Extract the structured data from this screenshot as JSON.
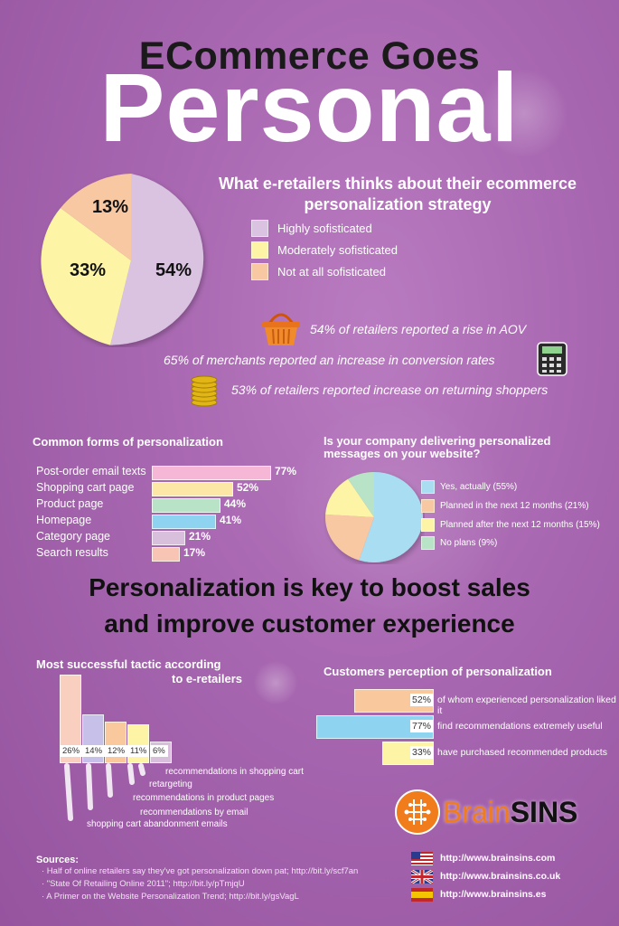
{
  "title": {
    "line1": "ECommerce Goes",
    "line2": "Personal"
  },
  "strategy": {
    "question": "What e-retailers thinks about their ecommerce personalization strategy",
    "legend": [
      {
        "label": "Highly sofisticated",
        "color": "#d9c3e0"
      },
      {
        "label": "Moderately sofisticated",
        "color": "#fdf5a5"
      },
      {
        "label": "Not at all sofisticated",
        "color": "#f8c8a3"
      }
    ],
    "slice_labels": [
      "54%",
      "33%",
      "13%"
    ]
  },
  "stats": [
    {
      "text": "54% of retailers reported a rise in AOV",
      "icon": "shopping-basket-icon"
    },
    {
      "text": "65% of merchants reported an increase in conversion rates",
      "icon": "calculator-icon"
    },
    {
      "text": "53% of retailers reported increase on returning shoppers",
      "icon": "coins-icon"
    }
  ],
  "common_forms": {
    "title": "Common forms of personalization",
    "items": [
      {
        "label": "Post-order email texts",
        "value": 77,
        "display": "77%",
        "color": "#f6b6d6"
      },
      {
        "label": "Shopping cart page",
        "value": 52,
        "display": "52%",
        "color": "#fde7a6"
      },
      {
        "label": "Product page",
        "value": 44,
        "display": "44%",
        "color": "#b9e3c7"
      },
      {
        "label": "Homepage",
        "value": 41,
        "display": "41%",
        "color": "#8ed3ef"
      },
      {
        "label": "Category page",
        "value": 21,
        "display": "21%",
        "color": "#d8c0dd"
      },
      {
        "label": "Search results",
        "value": 17,
        "display": "17%",
        "color": "#f8c5b4"
      }
    ]
  },
  "delivering": {
    "title": "Is your company delivering personalized messages on your website?",
    "legend": [
      {
        "label": "Yes, actually (55%)",
        "color": "#a9ddf2"
      },
      {
        "label": "Planned in the next 12 months (21%)",
        "color": "#f8c8a3"
      },
      {
        "label": "Planned after the next 12 months (15%)",
        "color": "#fdf5a5"
      },
      {
        "label": "No plans (9%)",
        "color": "#b9e3c7"
      }
    ]
  },
  "headline": {
    "line1": "Personalization is key to boost sales",
    "line2": "and improve customer experience"
  },
  "tactics": {
    "title_line1": "Most successful tactic according",
    "title_line2": "to e-retailers",
    "items": [
      {
        "display": "26%",
        "value": 26,
        "label": "shopping cart abandonment emails",
        "color": "#f9cfc0"
      },
      {
        "display": "14%",
        "value": 14,
        "label": "recommendations by email",
        "color": "#c7c0e8"
      },
      {
        "display": "12%",
        "value": 12,
        "label": "recommendations in product pages",
        "color": "#f9c89d"
      },
      {
        "display": "11%",
        "value": 11,
        "label": "retargeting",
        "color": "#fdf5a5"
      },
      {
        "display": "6%",
        "value": 6,
        "label": "recommendations in shopping cart",
        "color": "#d8c0dd"
      }
    ]
  },
  "perception": {
    "title": "Customers perception of personalization",
    "items": [
      {
        "display": "52%",
        "value": 52,
        "label": "of whom experienced personalization liked it",
        "color": "#f9c89d"
      },
      {
        "display": "77%",
        "value": 77,
        "label": "find recommendations extremely useful",
        "color": "#8ed3ef"
      },
      {
        "display": "33%",
        "value": 33,
        "label": "have purchased recommended products",
        "color": "#fdf5a5"
      }
    ]
  },
  "sources": {
    "heading": "Sources:",
    "items": [
      "· Half of online retailers say they've got personalization down pat; http://bit.ly/scf7an",
      "· \"State Of Retailing Online 2011\"; http://bit.ly/pTmjqU",
      "· A Primer on the Website Personalization Trend; http://bit.ly/gsVagL"
    ]
  },
  "brand": {
    "name_part1": "Brain",
    "name_part2": "SINS",
    "links": [
      {
        "url": "http://www.brainsins.com",
        "flag": "us-flag-icon"
      },
      {
        "url": "http://www.brainsins.co.uk",
        "flag": "uk-flag-icon"
      },
      {
        "url": "http://www.brainsins.es",
        "flag": "es-flag-icon"
      }
    ]
  }
}
